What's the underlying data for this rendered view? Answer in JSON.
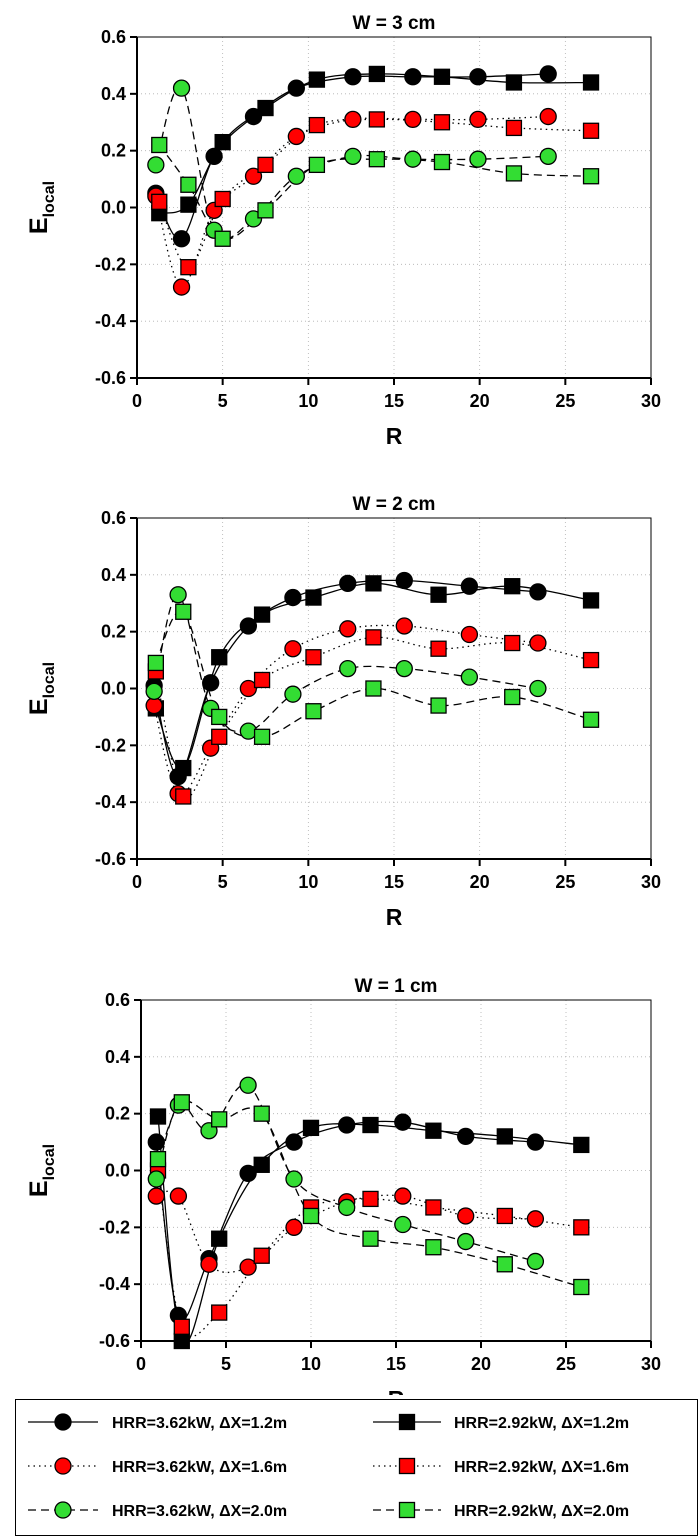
{
  "chart_data": [
    {
      "type": "line",
      "title": "W = 3 cm",
      "xlabel": "R",
      "ylabel": "E",
      "ylabel_sub": "local",
      "xlim": [
        0,
        30
      ],
      "ylim": [
        -0.6,
        0.6
      ],
      "xticks": [
        "0",
        "5",
        "10",
        "15",
        "20",
        "25",
        "30"
      ],
      "yticks": [
        "0.6",
        "0.4",
        "0.2",
        "0.0",
        "-0.2",
        "-0.4",
        "-0.6"
      ],
      "grid": true,
      "series": [
        {
          "name": "HRR=3.62kW, ΔX=1.2m",
          "marker": "circle",
          "color": "#000000",
          "line": "solid",
          "x": [
            1.1,
            2.6,
            4.5,
            6.8,
            9.3,
            12.6,
            16.1,
            19.9,
            24.0
          ],
          "y": [
            0.05,
            -0.11,
            0.18,
            0.32,
            0.42,
            0.46,
            0.46,
            0.46,
            0.47
          ]
        },
        {
          "name": "HRR=2.92kW, ΔX=1.2m",
          "marker": "square",
          "color": "#000000",
          "line": "solid",
          "x": [
            1.3,
            3.0,
            5.0,
            7.5,
            10.5,
            14.0,
            17.8,
            22.0,
            26.5
          ],
          "y": [
            -0.02,
            0.01,
            0.23,
            0.35,
            0.45,
            0.47,
            0.46,
            0.44,
            0.44
          ]
        },
        {
          "name": "HRR=3.62kW, ΔX=1.6m",
          "marker": "circle",
          "color": "#ff0000",
          "line": "dotted",
          "x": [
            1.1,
            2.6,
            4.5,
            6.8,
            9.3,
            12.6,
            16.1,
            19.9,
            24.0
          ],
          "y": [
            0.04,
            -0.28,
            -0.01,
            0.11,
            0.25,
            0.31,
            0.31,
            0.31,
            0.32
          ]
        },
        {
          "name": "HRR=2.92kW, ΔX=1.6m",
          "marker": "square",
          "color": "#ff0000",
          "line": "dotted",
          "x": [
            1.3,
            3.0,
            5.0,
            7.5,
            10.5,
            14.0,
            17.8,
            22.0,
            26.5
          ],
          "y": [
            0.02,
            -0.21,
            0.03,
            0.15,
            0.29,
            0.31,
            0.3,
            0.28,
            0.27
          ]
        },
        {
          "name": "HRR=3.62kW, ΔX=2.0m",
          "marker": "circle",
          "color": "#33dd33",
          "line": "dashed",
          "x": [
            1.1,
            2.6,
            4.5,
            6.8,
            9.3,
            12.6,
            16.1,
            19.9,
            24.0
          ],
          "y": [
            0.15,
            0.42,
            -0.08,
            -0.04,
            0.11,
            0.18,
            0.17,
            0.17,
            0.18
          ]
        },
        {
          "name": "HRR=2.92kW, ΔX=2.0m",
          "marker": "square",
          "color": "#33dd33",
          "line": "dashed",
          "x": [
            1.3,
            3.0,
            5.0,
            7.5,
            10.5,
            14.0,
            17.8,
            22.0,
            26.5
          ],
          "y": [
            0.22,
            0.08,
            -0.11,
            -0.01,
            0.15,
            0.17,
            0.16,
            0.12,
            0.11
          ]
        }
      ]
    },
    {
      "type": "line",
      "title": "W = 2 cm",
      "xlabel": "R",
      "ylabel": "E",
      "ylabel_sub": "local",
      "xlim": [
        0,
        30
      ],
      "ylim": [
        -0.6,
        0.6
      ],
      "xticks": [
        "0",
        "5",
        "10",
        "15",
        "20",
        "25",
        "30"
      ],
      "yticks": [
        "0.6",
        "0.4",
        "0.2",
        "0.0",
        "-0.2",
        "-0.4",
        "-0.6"
      ],
      "grid": true,
      "series": [
        {
          "name": "HRR=3.62kW, ΔX=1.2m",
          "marker": "circle",
          "color": "#000000",
          "line": "solid",
          "x": [
            1.0,
            2.4,
            4.3,
            6.5,
            9.1,
            12.3,
            15.6,
            19.4,
            23.4
          ],
          "y": [
            0.01,
            -0.31,
            0.02,
            0.22,
            0.32,
            0.37,
            0.38,
            0.36,
            0.34
          ]
        },
        {
          "name": "HRR=2.92kW, ΔX=1.2m",
          "marker": "square",
          "color": "#000000",
          "line": "solid",
          "x": [
            1.1,
            2.7,
            4.8,
            7.3,
            10.3,
            13.8,
            17.6,
            21.9,
            26.5
          ],
          "y": [
            -0.07,
            -0.28,
            0.11,
            0.26,
            0.32,
            0.37,
            0.33,
            0.36,
            0.31
          ]
        },
        {
          "name": "HRR=3.62kW, ΔX=1.6m",
          "marker": "circle",
          "color": "#ff0000",
          "line": "dotted",
          "x": [
            1.0,
            2.4,
            4.3,
            6.5,
            9.1,
            12.3,
            15.6,
            19.4,
            23.4
          ],
          "y": [
            -0.06,
            -0.37,
            -0.21,
            0.0,
            0.14,
            0.21,
            0.22,
            0.19,
            0.16
          ]
        },
        {
          "name": "HRR=2.92kW, ΔX=1.6m",
          "marker": "square",
          "color": "#ff0000",
          "line": "dotted",
          "x": [
            1.1,
            2.7,
            4.8,
            7.3,
            10.3,
            13.8,
            17.6,
            21.9,
            26.5
          ],
          "y": [
            0.06,
            -0.38,
            -0.17,
            0.03,
            0.11,
            0.18,
            0.14,
            0.16,
            0.1
          ]
        },
        {
          "name": "HRR=3.62kW, ΔX=2.0m",
          "marker": "circle",
          "color": "#33dd33",
          "line": "dashed",
          "x": [
            1.0,
            2.4,
            4.3,
            6.5,
            9.1,
            12.3,
            15.6,
            19.4,
            23.4
          ],
          "y": [
            -0.01,
            0.33,
            -0.07,
            -0.15,
            -0.02,
            0.07,
            0.07,
            0.04,
            0.0
          ]
        },
        {
          "name": "HRR=2.92kW, ΔX=2.0m",
          "marker": "square",
          "color": "#33dd33",
          "line": "dashed",
          "x": [
            1.1,
            2.7,
            4.8,
            7.3,
            10.3,
            13.8,
            17.6,
            21.9,
            26.5
          ],
          "y": [
            0.09,
            0.27,
            -0.1,
            -0.17,
            -0.08,
            0.0,
            -0.06,
            -0.03,
            -0.11
          ]
        }
      ]
    },
    {
      "type": "line",
      "title": "W = 1 cm",
      "xlabel": "R",
      "ylabel": "E",
      "ylabel_sub": "local",
      "xlim": [
        0,
        30
      ],
      "ylim": [
        -0.6,
        0.6
      ],
      "xticks": [
        "0",
        "5",
        "10",
        "15",
        "20",
        "25",
        "30"
      ],
      "yticks": [
        "0.6",
        "0.4",
        "0.2",
        "0.0",
        "-0.2",
        "-0.4",
        "-0.6"
      ],
      "grid": true,
      "series": [
        {
          "name": "HRR=3.62kW, ΔX=1.2m",
          "marker": "circle",
          "color": "#000000",
          "line": "solid",
          "x": [
            0.9,
            2.2,
            4.0,
            6.3,
            9.0,
            12.1,
            15.4,
            19.1,
            23.2
          ],
          "y": [
            0.1,
            -0.51,
            -0.31,
            -0.01,
            0.1,
            0.16,
            0.17,
            0.12,
            0.1
          ]
        },
        {
          "name": "HRR=2.92kW, ΔX=1.2m",
          "marker": "square",
          "color": "#000000",
          "line": "solid",
          "x": [
            1.0,
            2.4,
            4.6,
            7.1,
            10.0,
            13.5,
            17.2,
            21.4,
            25.9
          ],
          "y": [
            0.19,
            -0.6,
            -0.24,
            0.02,
            0.15,
            0.16,
            0.14,
            0.12,
            0.09
          ]
        },
        {
          "name": "HRR=3.62kW, ΔX=1.6m",
          "marker": "circle",
          "color": "#ff0000",
          "line": "dotted",
          "x": [
            0.9,
            2.2,
            4.0,
            6.3,
            9.0,
            12.1,
            15.4,
            19.1,
            23.2
          ],
          "y": [
            -0.09,
            -0.09,
            -0.33,
            -0.34,
            -0.2,
            -0.11,
            -0.09,
            -0.16,
            -0.17
          ]
        },
        {
          "name": "HRR=2.92kW, ΔX=1.6m",
          "marker": "square",
          "color": "#ff0000",
          "line": "dotted",
          "x": [
            1.0,
            2.4,
            4.6,
            7.1,
            10.0,
            13.5,
            17.2,
            21.4,
            25.9
          ],
          "y": [
            0.0,
            -0.55,
            -0.5,
            -0.3,
            -0.13,
            -0.1,
            -0.13,
            -0.16,
            -0.2
          ]
        },
        {
          "name": "HRR=3.62kW, ΔX=2.0m",
          "marker": "circle",
          "color": "#33dd33",
          "line": "dashed",
          "x": [
            0.9,
            2.2,
            4.0,
            6.3,
            9.0,
            12.1,
            15.4,
            19.1,
            23.2
          ],
          "y": [
            -0.03,
            0.23,
            0.14,
            0.3,
            -0.03,
            -0.13,
            -0.19,
            -0.25,
            -0.32
          ]
        },
        {
          "name": "HRR=2.92kW, ΔX=2.0m",
          "marker": "square",
          "color": "#33dd33",
          "line": "dashed",
          "x": [
            1.0,
            2.4,
            4.6,
            7.1,
            10.0,
            13.5,
            17.2,
            21.4,
            25.9
          ],
          "y": [
            0.04,
            0.24,
            0.18,
            0.2,
            -0.16,
            -0.24,
            -0.27,
            -0.33,
            -0.41
          ]
        }
      ]
    }
  ],
  "legend": {
    "placement": "bottom",
    "entries": [
      {
        "label": "HRR=3.62kW, ΔX=1.2m",
        "marker": "circle",
        "color": "#000000",
        "line": "solid"
      },
      {
        "label": "HRR=2.92kW, ΔX=1.2m",
        "marker": "square",
        "color": "#000000",
        "line": "solid"
      },
      {
        "label": "HRR=3.62kW, ΔX=1.6m",
        "marker": "circle",
        "color": "#ff0000",
        "line": "dotted"
      },
      {
        "label": "HRR=2.92kW, ΔX=1.6m",
        "marker": "square",
        "color": "#ff0000",
        "line": "dotted"
      },
      {
        "label": "HRR=3.62kW, ΔX=2.0m",
        "marker": "circle",
        "color": "#33dd33",
        "line": "dashed"
      },
      {
        "label": "HRR=2.92kW, ΔX=2.0m",
        "marker": "square",
        "color": "#33dd33",
        "line": "dashed"
      }
    ]
  }
}
